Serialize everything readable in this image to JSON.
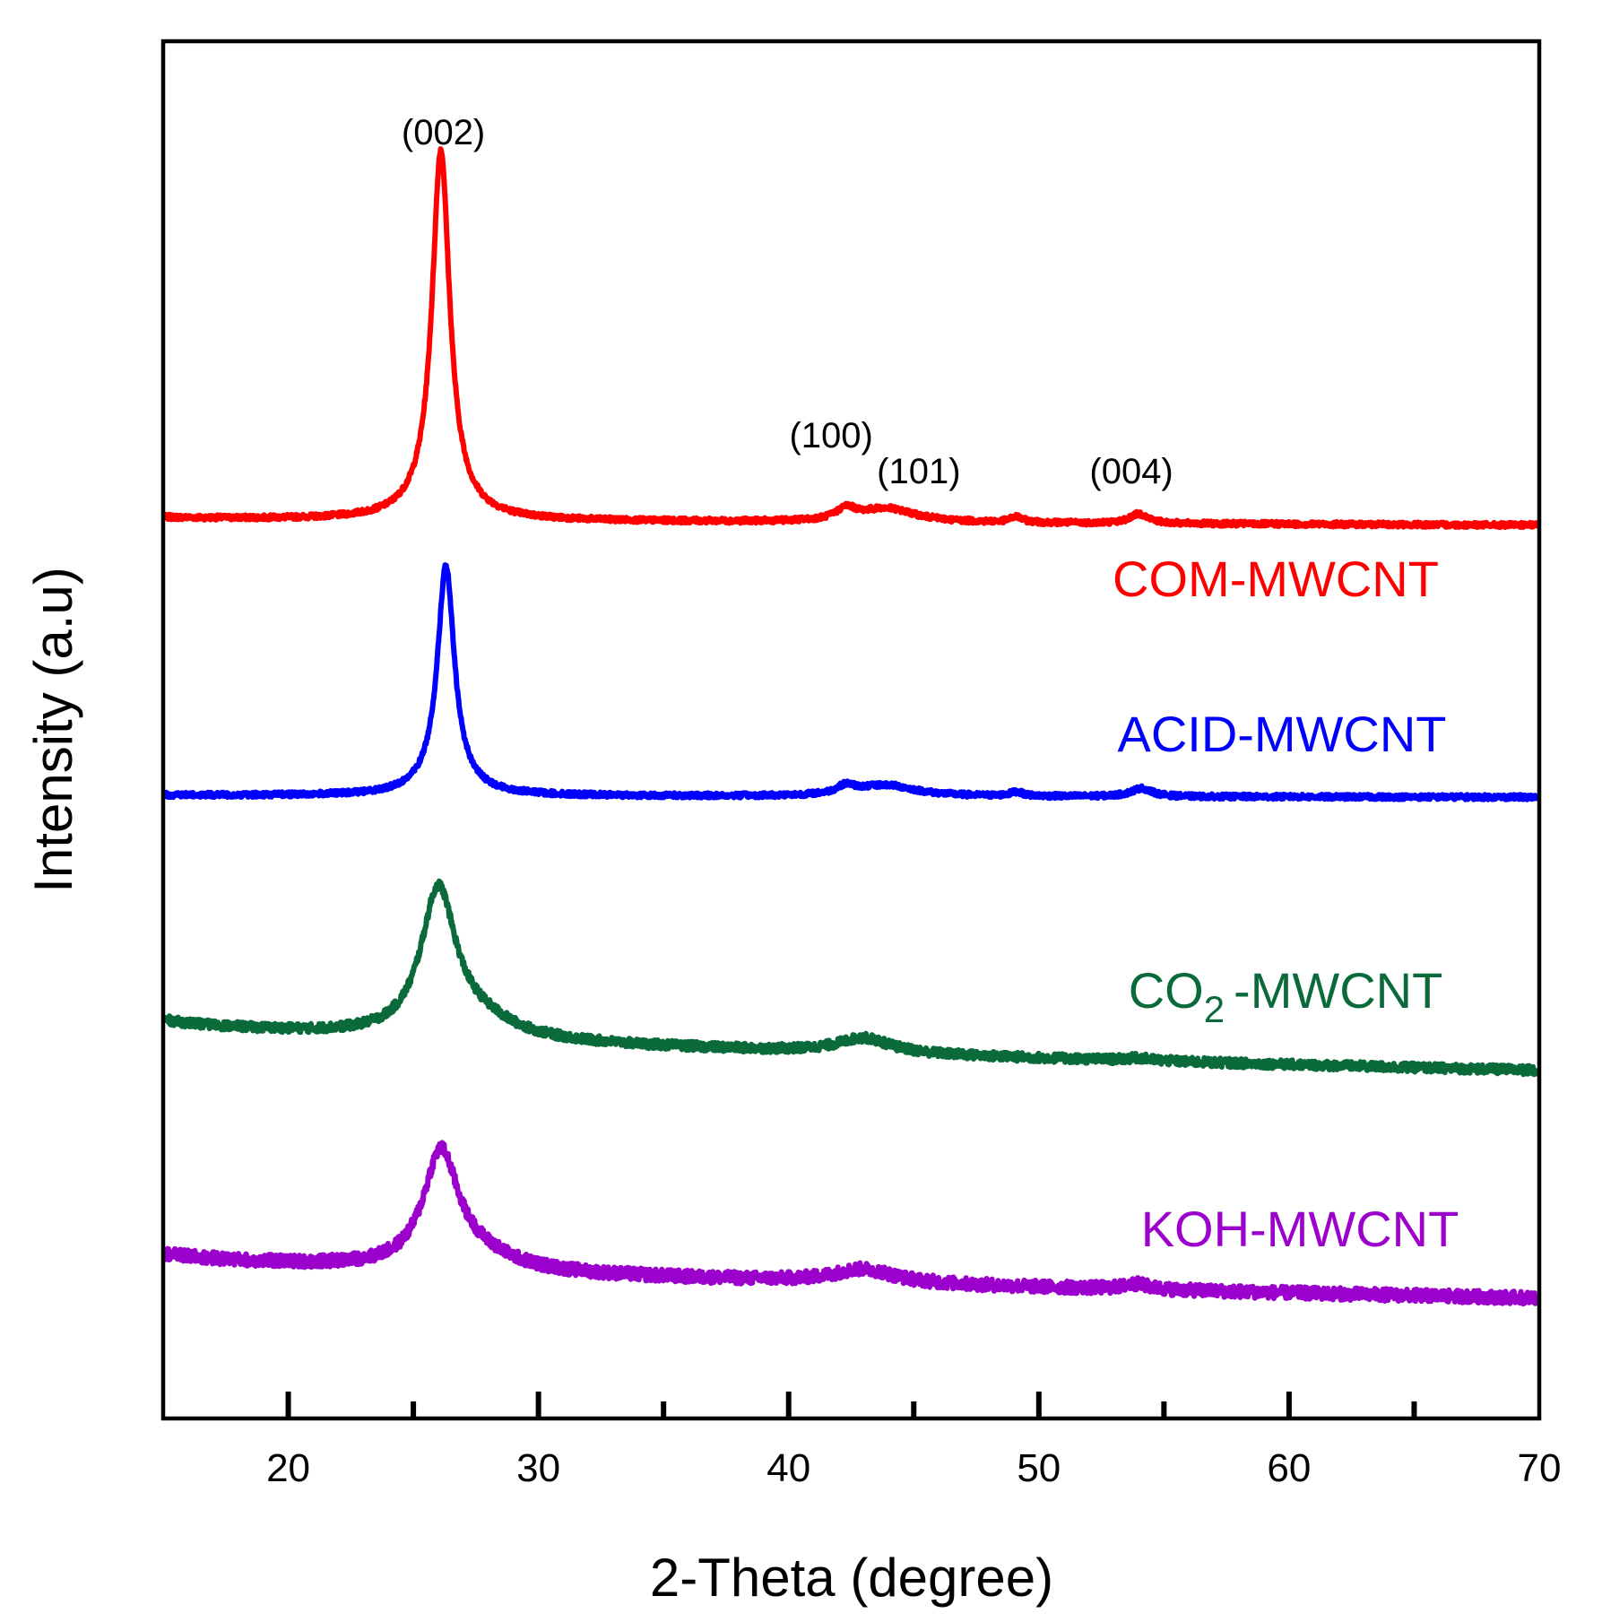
{
  "chart_data": {
    "type": "line",
    "title": "",
    "xlabel": "2-Theta (degree)",
    "ylabel": "Intensity (a.u)",
    "xlim": [
      15,
      70
    ],
    "ylim": [
      0,
      1
    ],
    "major_ticks": [
      20,
      30,
      40,
      50,
      60,
      70
    ],
    "minor_ticks": [
      25,
      35,
      45,
      55,
      65
    ],
    "tick_labels": [
      "20",
      "30",
      "40",
      "50",
      "60",
      "70"
    ],
    "y_ticks_shown": false,
    "grid": false,
    "legend": "inline labels on right",
    "series": [
      {
        "name": "COM-MWCNT",
        "label_main": "COM-MWCNT",
        "label_sub": "",
        "label_suffix": "",
        "color": "#ff0000",
        "baseline": 0.6542,
        "drift": -0.0056,
        "noise": 0.0018,
        "peaks": [
          {
            "center": 26.1,
            "height": 0.255,
            "width": 0.42
          },
          {
            "center": 26.1,
            "height": 0.014,
            "width": 1.1
          },
          {
            "center": 42.3,
            "height": 0.008,
            "width": 0.45
          },
          {
            "center": 43.9,
            "height": 0.01,
            "width": 1.4
          },
          {
            "center": 49.1,
            "height": 0.004,
            "width": 0.3
          },
          {
            "center": 54.0,
            "height": 0.007,
            "width": 0.45
          }
        ]
      },
      {
        "name": "ACID-MWCNT",
        "label_main": "ACID-MWCNT",
        "label_sub": "",
        "label_suffix": "",
        "color": "#0000ff",
        "baseline": 0.4526,
        "drift": -0.0015,
        "noise": 0.0018,
        "peaks": [
          {
            "center": 26.3,
            "height": 0.155,
            "width": 0.4
          },
          {
            "center": 26.3,
            "height": 0.012,
            "width": 1.0
          },
          {
            "center": 42.3,
            "height": 0.006,
            "width": 0.45
          },
          {
            "center": 43.9,
            "height": 0.008,
            "width": 1.4
          },
          {
            "center": 49.1,
            "height": 0.003,
            "width": 0.3
          },
          {
            "center": 54.1,
            "height": 0.006,
            "width": 0.5
          }
        ]
      },
      {
        "name": "CO2-MWCNT",
        "label_main": "CO",
        "label_sub": "2",
        "label_suffix": "-MWCNT",
        "color": "#0a6a3a",
        "baseline": 0.2896,
        "drift": -0.0369,
        "noise": 0.0032,
        "peaks": [
          {
            "center": 26.0,
            "height": 0.105,
            "width": 0.85
          },
          {
            "center": 27.6,
            "height": 0.012,
            "width": 1.8
          },
          {
            "center": 43.0,
            "height": 0.011,
            "width": 1.3
          },
          {
            "center": 54.0,
            "height": 0.002,
            "width": 0.6
          }
        ]
      },
      {
        "name": "KOH-MWCNT",
        "label_main": "KOH-MWCNT",
        "label_sub": "",
        "label_suffix": "",
        "color": "#9b00cc",
        "baseline": 0.1199,
        "drift": -0.0325,
        "noise": 0.0045,
        "peaks": [
          {
            "center": 26.1,
            "height": 0.083,
            "width": 0.85
          },
          {
            "center": 27.6,
            "height": 0.01,
            "width": 1.8
          },
          {
            "center": 43.0,
            "height": 0.01,
            "width": 1.5
          },
          {
            "center": 53.9,
            "height": 0.004,
            "width": 0.6
          }
        ]
      }
    ],
    "annotations": [
      {
        "text": "(002)",
        "x": 26.2,
        "y": 0.925
      },
      {
        "text": "(100)",
        "x": 41.7,
        "y": 0.705
      },
      {
        "text": "(101)",
        "x": 45.2,
        "y": 0.679
      },
      {
        "text": "(004)",
        "x": 53.7,
        "y": 0.679
      }
    ]
  }
}
